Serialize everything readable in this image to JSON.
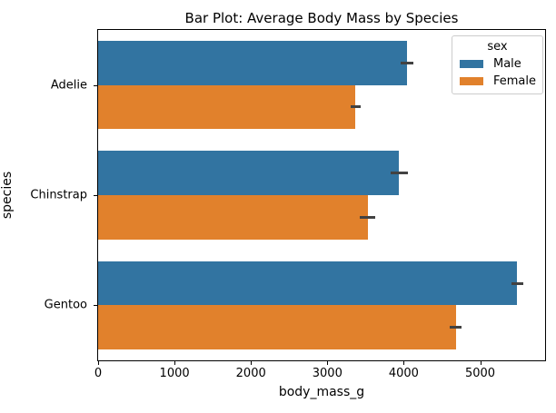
{
  "title": "Bar Plot: Average Body Mass by Species",
  "legend": {
    "title": "sex",
    "entries": [
      {
        "label": "Male",
        "color": "#3274a1"
      },
      {
        "label": "Female",
        "color": "#e1812c"
      }
    ]
  },
  "chart_data": {
    "type": "bar",
    "orientation": "horizontal",
    "title": "Bar Plot: Average Body Mass by Species",
    "xlabel": "body_mass_g",
    "ylabel": "species",
    "categories": [
      "Adelie",
      "Chinstrap",
      "Gentoo"
    ],
    "series": [
      {
        "name": "Male",
        "color": "#3274a1",
        "values": [
          4043,
          3939,
          5485
        ],
        "ci": [
          [
            3963,
            4123
          ],
          [
            3830,
            4050
          ],
          [
            5405,
            5565
          ]
        ]
      },
      {
        "name": "Female",
        "color": "#e1812c",
        "values": [
          3369,
          3527,
          4680
        ],
        "ci": [
          [
            3307,
            3431
          ],
          [
            3430,
            3625
          ],
          [
            4606,
            4754
          ]
        ]
      }
    ],
    "xlim": [
      0,
      5850
    ],
    "xticks": [
      0,
      1000,
      2000,
      3000,
      4000,
      5000
    ],
    "error_color": "#424242",
    "grid": false,
    "legend_position": "upper right",
    "bar_group_width": 0.8
  }
}
